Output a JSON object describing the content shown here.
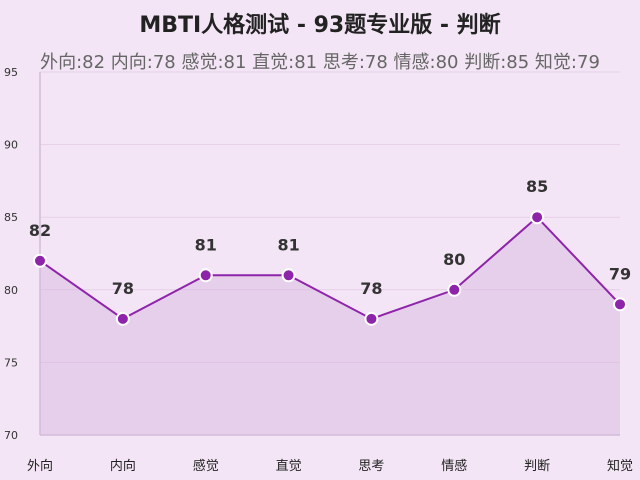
{
  "chart_data": {
    "type": "area",
    "title": "MBTI人格测试 - 93题专业版 - 判断",
    "subtitle": "外向:82 内向:78 感觉:81 直觉:81 思考:78 情感:80 判断:85 知觉:79",
    "categories": [
      "外向",
      "内向",
      "感觉",
      "直觉",
      "思考",
      "情感",
      "判断",
      "知觉"
    ],
    "values": [
      82,
      78,
      81,
      81,
      78,
      80,
      85,
      79
    ],
    "ylim": [
      70,
      95
    ],
    "yticks": [
      70,
      75,
      80,
      85,
      90,
      95
    ],
    "grid": true,
    "legend": "none",
    "colors": {
      "line": "#8e24aa",
      "fill": "#d8b4e0",
      "background": "#f3e5f5",
      "grid": "#e6cfe9",
      "axis": "#d2bdd8",
      "marker_stroke": "#ffffff"
    }
  }
}
